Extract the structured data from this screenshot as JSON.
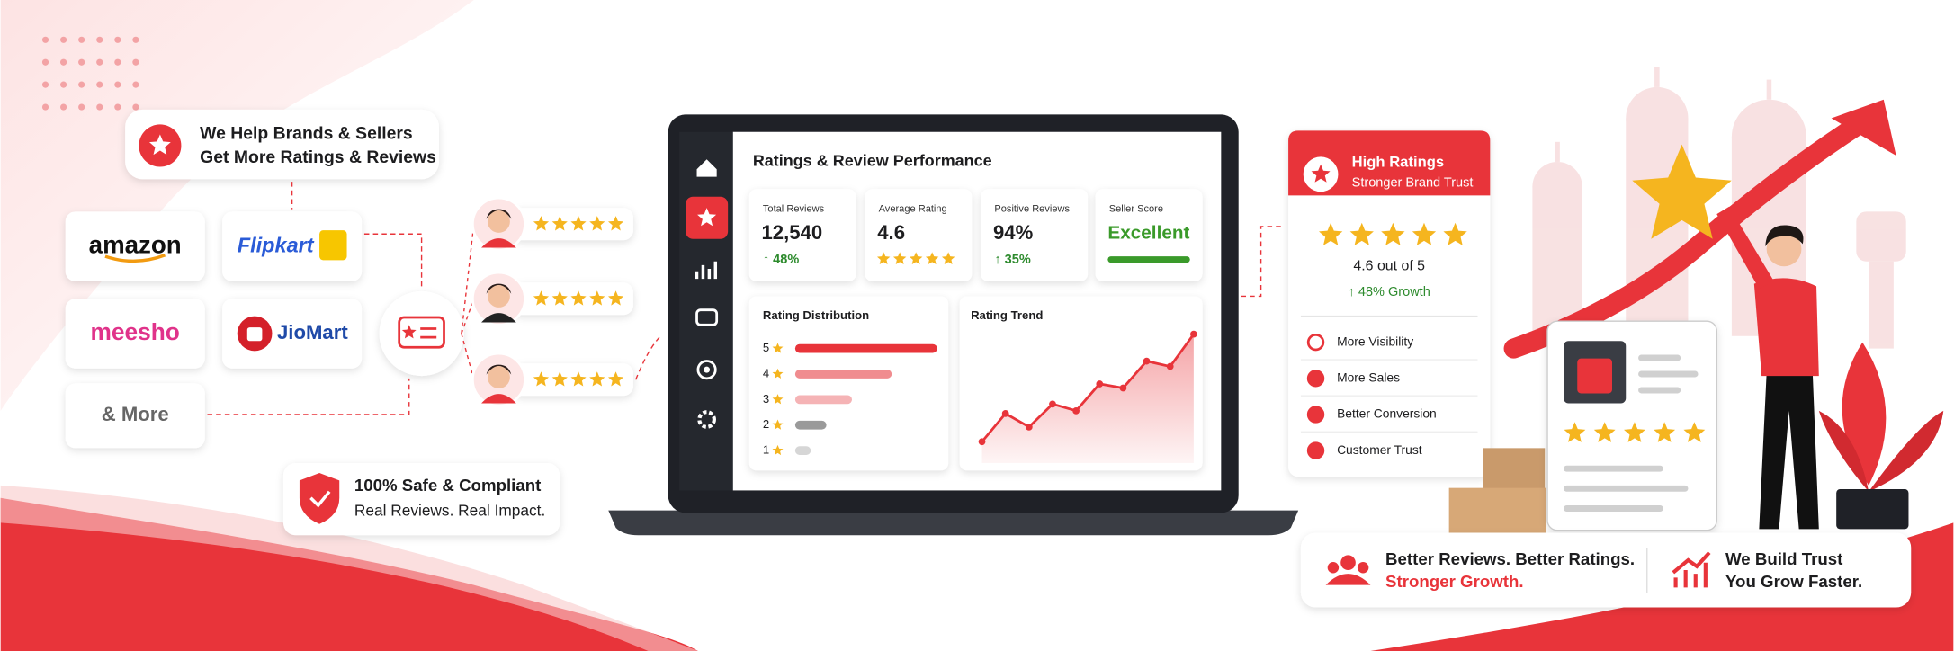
{
  "header": {
    "title_line1": "We Help Brands & Sellers",
    "title_line2": "Get More Ratings & Reviews"
  },
  "marketplaces": [
    "amazon",
    "Flipkart",
    "meesho",
    "JioMart",
    "& More"
  ],
  "safety": {
    "title": "100% Safe & Compliant",
    "subtitle": "Real Reviews. Real Impact."
  },
  "dashboard": {
    "title": "Ratings & Review Performance",
    "cards": [
      {
        "label": "Total Reviews",
        "value": "12,540",
        "change": "↑ 48%"
      },
      {
        "label": "Average Rating",
        "value": "4.6"
      },
      {
        "label": "Positive Reviews",
        "value": "94%",
        "change": "↑ 35%"
      },
      {
        "label": "Seller Score",
        "value": "Excellent"
      }
    ],
    "rating_distribution": {
      "title": "Rating Distribution",
      "levels": [
        5,
        4,
        3,
        2,
        1
      ],
      "values": [
        100,
        68,
        40,
        22,
        11
      ]
    },
    "rating_trend": {
      "title": "Rating Trend",
      "values": [
        14,
        35,
        25,
        42,
        37,
        57,
        54,
        74,
        70,
        94
      ]
    }
  },
  "highlight_card": {
    "title": "High Ratings",
    "subtitle": "Stronger Brand Trust",
    "rating": "4.6 out of 5",
    "growth": "↑ 48% Growth",
    "benefits": [
      "More Visibility",
      "More Sales",
      "Better Conversion",
      "Customer Trust"
    ]
  },
  "footer": {
    "left_line1": "Better Reviews. Better Ratings.",
    "left_line2": "Stronger Growth.",
    "right_line1": "We Build Trust",
    "right_line2": "You Grow Faster."
  }
}
